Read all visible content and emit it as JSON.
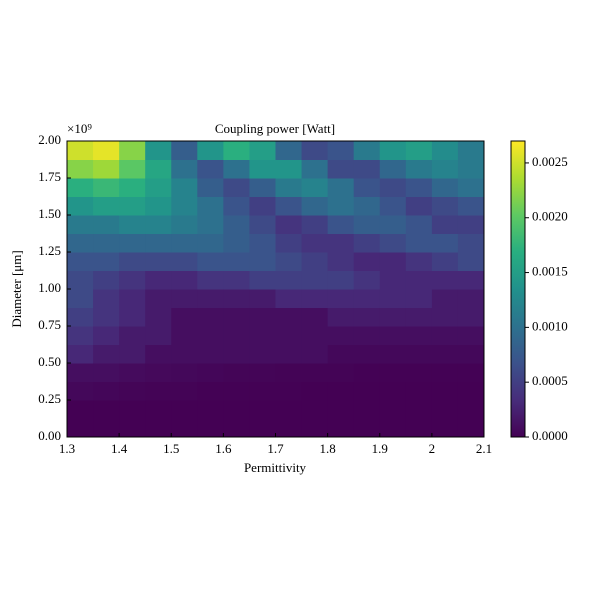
{
  "chart_data": {
    "type": "heatmap",
    "title": "Coupling power [Watt]",
    "x_label": "Permittivity",
    "y_label": "Diameter [μm]",
    "y_offset_label": "×10⁹",
    "x": [
      1.325,
      1.375,
      1.425,
      1.475,
      1.525,
      1.575,
      1.625,
      1.675,
      1.725,
      1.775,
      1.825,
      1.875,
      1.925,
      1.975,
      2.025,
      2.075
    ],
    "y": [
      0.0625,
      0.1875,
      0.3125,
      0.4375,
      0.5625,
      0.6875,
      0.8125,
      0.9375,
      1.0625,
      1.1875,
      1.3125,
      1.4375,
      1.5625,
      1.6875,
      1.8125,
      1.9375
    ],
    "z": [
      [
        0,
        0,
        0,
        0,
        0,
        0,
        0,
        0,
        0,
        0,
        0,
        0,
        0,
        0,
        0,
        0
      ],
      [
        0,
        0,
        0,
        0,
        0,
        0,
        0,
        0,
        0,
        0,
        0,
        0,
        0,
        0,
        0,
        0
      ],
      [
        5e-05,
        4e-05,
        3e-05,
        2e-05,
        2e-05,
        1e-05,
        1e-05,
        1e-05,
        1e-05,
        0,
        0,
        0,
        0,
        0,
        0,
        0
      ],
      [
        0.0001,
        0.0001,
        8e-05,
        6e-05,
        5e-05,
        4e-05,
        3e-05,
        3e-05,
        2e-05,
        2e-05,
        2e-05,
        1e-05,
        1e-05,
        1e-05,
        1e-05,
        1e-05
      ],
      [
        0.0003,
        0.0002,
        0.0002,
        0.0001,
        0.0001,
        0.0001,
        0.0001,
        0.0001,
        0.0001,
        0.0001,
        5e-05,
        5e-05,
        5e-05,
        5e-05,
        5e-05,
        5e-05
      ],
      [
        0.0004,
        0.0003,
        0.0002,
        0.0002,
        0.0001,
        0.0001,
        0.0001,
        0.0001,
        0.0001,
        0.0001,
        0.0001,
        0.0001,
        0.0001,
        0.0001,
        0.0001,
        0.0001
      ],
      [
        0.0005,
        0.0004,
        0.0003,
        0.0002,
        0.0001,
        0.0001,
        0.0001,
        0.0001,
        0.0001,
        0.0001,
        0.0002,
        0.0002,
        0.0002,
        0.0002,
        0.0002,
        0.0002
      ],
      [
        0.0006,
        0.0004,
        0.0003,
        0.0002,
        0.0002,
        0.0002,
        0.0002,
        0.0002,
        0.0003,
        0.0003,
        0.0003,
        0.0003,
        0.0003,
        0.0003,
        0.0002,
        0.0002
      ],
      [
        0.0006,
        0.0005,
        0.0004,
        0.0003,
        0.0003,
        0.0004,
        0.0004,
        0.0005,
        0.0005,
        0.0005,
        0.0005,
        0.0004,
        0.0003,
        0.0003,
        0.0003,
        0.0003
      ],
      [
        0.0007,
        0.0007,
        0.0006,
        0.0006,
        0.0006,
        0.0007,
        0.0007,
        0.0007,
        0.0006,
        0.0005,
        0.0004,
        0.0003,
        0.0003,
        0.0004,
        0.0005,
        0.0006
      ],
      [
        0.0009,
        0.0009,
        0.0009,
        0.0009,
        0.0009,
        0.0009,
        0.0008,
        0.0007,
        0.0005,
        0.0004,
        0.0004,
        0.0005,
        0.0006,
        0.0007,
        0.0007,
        0.0006
      ],
      [
        0.0011,
        0.0011,
        0.0012,
        0.0012,
        0.0011,
        0.001,
        0.0008,
        0.0006,
        0.0004,
        0.0005,
        0.0007,
        0.0008,
        0.0008,
        0.0007,
        0.0005,
        0.0005
      ],
      [
        0.0014,
        0.0015,
        0.0015,
        0.0014,
        0.0012,
        0.001,
        0.0007,
        0.0005,
        0.0007,
        0.0009,
        0.001,
        0.0009,
        0.0007,
        0.0005,
        0.0006,
        0.0007
      ],
      [
        0.0017,
        0.0018,
        0.0017,
        0.0015,
        0.0012,
        0.0008,
        0.0006,
        0.0008,
        0.0011,
        0.0012,
        0.001,
        0.0007,
        0.0006,
        0.0007,
        0.0009,
        0.001
      ],
      [
        0.0022,
        0.0023,
        0.002,
        0.0016,
        0.001,
        0.0007,
        0.001,
        0.0014,
        0.0014,
        0.001,
        0.0006,
        0.0006,
        0.0009,
        0.0011,
        0.0012,
        0.0011
      ],
      [
        0.0025,
        0.0026,
        0.0022,
        0.0014,
        0.0008,
        0.0014,
        0.0017,
        0.0015,
        0.0009,
        0.0006,
        0.0007,
        0.0011,
        0.0014,
        0.0015,
        0.0013,
        0.0011
      ]
    ],
    "xlim": [
      1.3,
      2.1
    ],
    "ylim": [
      0,
      2
    ],
    "xticks": [
      1.3,
      1.4,
      1.5,
      1.6,
      1.7,
      1.8,
      1.9,
      2.0,
      2.1
    ],
    "yticks": [
      {
        "value": 0,
        "label": "0.00"
      },
      {
        "value": 0.25,
        "label": "0.25"
      },
      {
        "value": 0.5,
        "label": "0.50"
      },
      {
        "value": 0.75,
        "label": "0.75"
      },
      {
        "value": 1,
        "label": "1.00"
      },
      {
        "value": 1.25,
        "label": "1.25"
      },
      {
        "value": 1.5,
        "label": "1.50"
      },
      {
        "value": 1.75,
        "label": "1.75"
      },
      {
        "value": 2,
        "label": "2.00"
      }
    ],
    "colormap": "viridis",
    "clim": [
      0,
      0.0027
    ],
    "cticks": [
      {
        "value": 0,
        "label": "0.0000"
      },
      {
        "value": 0.0005,
        "label": "0.0005"
      },
      {
        "value": 0.001,
        "label": "0.0010"
      },
      {
        "value": 0.0015,
        "label": "0.0015"
      },
      {
        "value": 0.002,
        "label": "0.0020"
      },
      {
        "value": 0.0025,
        "label": "0.0025"
      }
    ]
  }
}
